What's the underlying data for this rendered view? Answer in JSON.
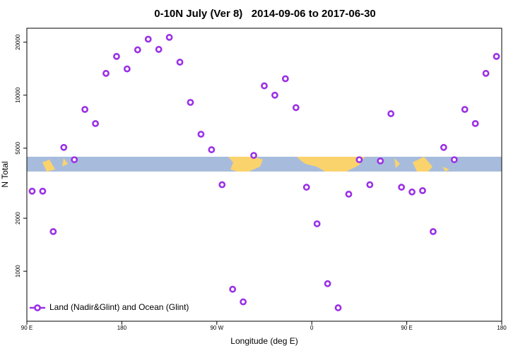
{
  "chart_data": {
    "type": "scatter",
    "title": "0-10N July (Ver 8)   2014-09-06 to 2017-06-30",
    "x_label": "Longitude (deg E)",
    "y_label": "N Total",
    "x": [
      95,
      105,
      115,
      125,
      135,
      145,
      155,
      165,
      175,
      185,
      195,
      205,
      215,
      225,
      235,
      245,
      255,
      265,
      275,
      285,
      295,
      305,
      315,
      325,
      335,
      345,
      355,
      365,
      375,
      385,
      395,
      405,
      415,
      425,
      435,
      445,
      455,
      465,
      475,
      485,
      495,
      505,
      515,
      525,
      535
    ],
    "series": [
      {
        "name": "Land (Nadir&Glint) and Ocean (Glint)",
        "color": "#9b30e6",
        "values": [
          2850,
          2850,
          1680,
          5050,
          4300,
          8300,
          6900,
          13300,
          16600,
          14100,
          18100,
          20800,
          18200,
          21300,
          15400,
          9100,
          6000,
          4900,
          3100,
          790,
          670,
          4550,
          11300,
          10000,
          12400,
          8500,
          3000,
          1860,
          850,
          620,
          2740,
          4300,
          3100,
          4230,
          7850,
          3000,
          2820,
          2870,
          1680,
          5050,
          4300,
          8300,
          6900,
          13300,
          16600
        ]
      }
    ],
    "xlim": [
      90,
      540
    ],
    "xticks": [
      {
        "value": 90,
        "label": "90 E"
      },
      {
        "value": 180,
        "label": "180"
      },
      {
        "value": 270,
        "label": "90 W"
      },
      {
        "value": 360,
        "label": "0"
      },
      {
        "value": 450,
        "label": "90 E"
      },
      {
        "value": 540,
        "label": "180"
      }
    ],
    "ylim": [
      520,
      24000
    ],
    "yticks": [
      1000,
      2000,
      5000,
      10000,
      20000
    ],
    "log_y": true,
    "legend": "lower left"
  }
}
